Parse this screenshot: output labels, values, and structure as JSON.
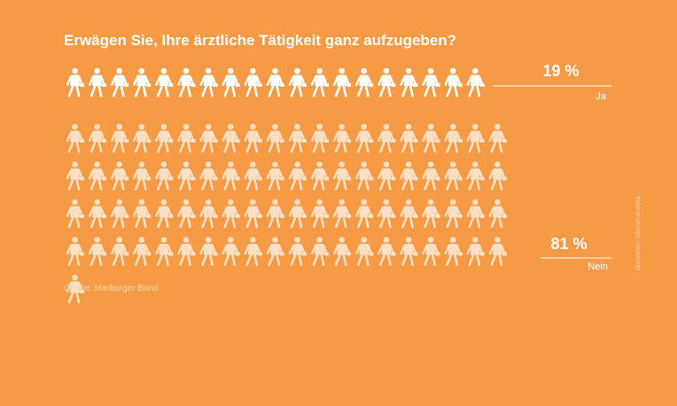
{
  "title": "Erwägen Sie, Ihre ärztliche Tätigkeit ganz aufzugeben?",
  "source": "Quelle: Marburger Bund",
  "credit": "Illustration: iStock/odudeka",
  "colors": {
    "background": "#f79a46",
    "figure_ja": "#ffffff",
    "figure_nein": "#fde0c4",
    "rule": "#ffffff",
    "muted_text": "#fcd5b0"
  },
  "icon": "doctor-with-bag-icon",
  "chart_data": {
    "type": "pictogram",
    "title": "Erwägen Sie, Ihre ärztliche Tätigkeit ganz aufzugeben?",
    "unit": "%",
    "series": [
      {
        "name": "Ja",
        "value": 19,
        "value_label": "19 %",
        "icon_count": 19
      },
      {
        "name": "Nein",
        "value": 81,
        "value_label": "81 %",
        "icon_count": 81
      }
    ]
  }
}
